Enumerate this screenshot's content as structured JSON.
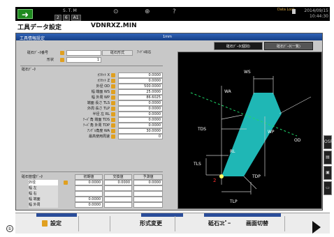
{
  "status_bar": {
    "mode_label": "S.T.M",
    "modes": [
      "2",
      "6",
      "A1"
    ],
    "data_r": "Data\nLock",
    "date": "2014/09/15",
    "time": "10:44:30"
  },
  "title": {
    "screen": "工具データ設定",
    "program": "VDNRXZ.MIN"
  },
  "panel": {
    "header": "工具情報設定",
    "unit": "1mm",
    "tabs": [
      "砥石ﾃﾞｰﾀ(個別)",
      "砥石ﾃﾞｰﾀ(一覧)"
    ]
  },
  "info": {
    "wheel_no_label": "砥石ﾃﾞｰﾀ番号",
    "wheel_type_label": "砥石形式",
    "wheel_type_value": "ｱﾝｸﾞﾙ砥石",
    "shape_label": "形状",
    "shape_value": "1"
  },
  "wheel_data": {
    "section_label": "砥石ﾃﾞｰﾀ",
    "rows": [
      {
        "label": "ｵﾌｾｯﾄ X",
        "value": "0.0000"
      },
      {
        "label": "ｵﾌｾｯﾄ Z",
        "value": "0.0000"
      },
      {
        "label": "外径 OD",
        "value": "500.0000"
      },
      {
        "label": "幅 端面 WS",
        "value": "25.0000"
      },
      {
        "label": "幅 外周 WP",
        "value": "86.6025"
      },
      {
        "label": "端面 長さ TLS",
        "value": "0.0000"
      },
      {
        "label": "外周 長さ TLP",
        "value": "0.0000"
      },
      {
        "label": "半径 左 RL",
        "value": "0.0000"
      },
      {
        "label": "ﾃｰﾊﾟ角 端面 TDS",
        "value": "0.0000"
      },
      {
        "label": "ﾃｰﾊﾟ角 外周 TDP",
        "value": "0.0000"
      },
      {
        "label": "ｱﾝｸﾞﾙ角度 WA",
        "value": "30.0000"
      },
      {
        "label": "最高使用周速",
        "value": "0"
      }
    ]
  },
  "manage": {
    "section_label": "砥石管理ﾃﾞｰﾀ",
    "headers": [
      "初期値",
      "交換値",
      "予測値"
    ],
    "rows": [
      {
        "label": "外径",
        "values": [
          "0.0000",
          "0.0000",
          "0.0000"
        ]
      },
      {
        "label": "幅 左",
        "values": [
          "",
          "",
          ""
        ]
      },
      {
        "label": "幅 右",
        "values": [
          "",
          "",
          ""
        ]
      },
      {
        "label": "幅 端面",
        "values": [
          "0.0000",
          "",
          ""
        ]
      },
      {
        "label": "幅 外周",
        "values": [
          "0.0000",
          "",
          ""
        ]
      }
    ]
  },
  "diagram": {
    "labels": {
      "ws": "WS",
      "wa": "WA",
      "wp": "WP",
      "od": "OD",
      "tds": "TDS",
      "tls": "TLS",
      "rl": "RL",
      "tdp": "TDP",
      "tlp": "TLP",
      "point": "2"
    },
    "colors": {
      "wheel": "#1fb7b5",
      "line": "#cccccc",
      "dash": "#1fd96a",
      "point": "#ff3030"
    }
  },
  "side_buttons": [
    "OSP",
    "",
    "",
    ""
  ],
  "function_keys": {
    "settings": "設定",
    "shape_change": "形式変更",
    "wheel_copy": "砥石ｺﾋﾟｰ",
    "screen_switch": "画面切替"
  }
}
